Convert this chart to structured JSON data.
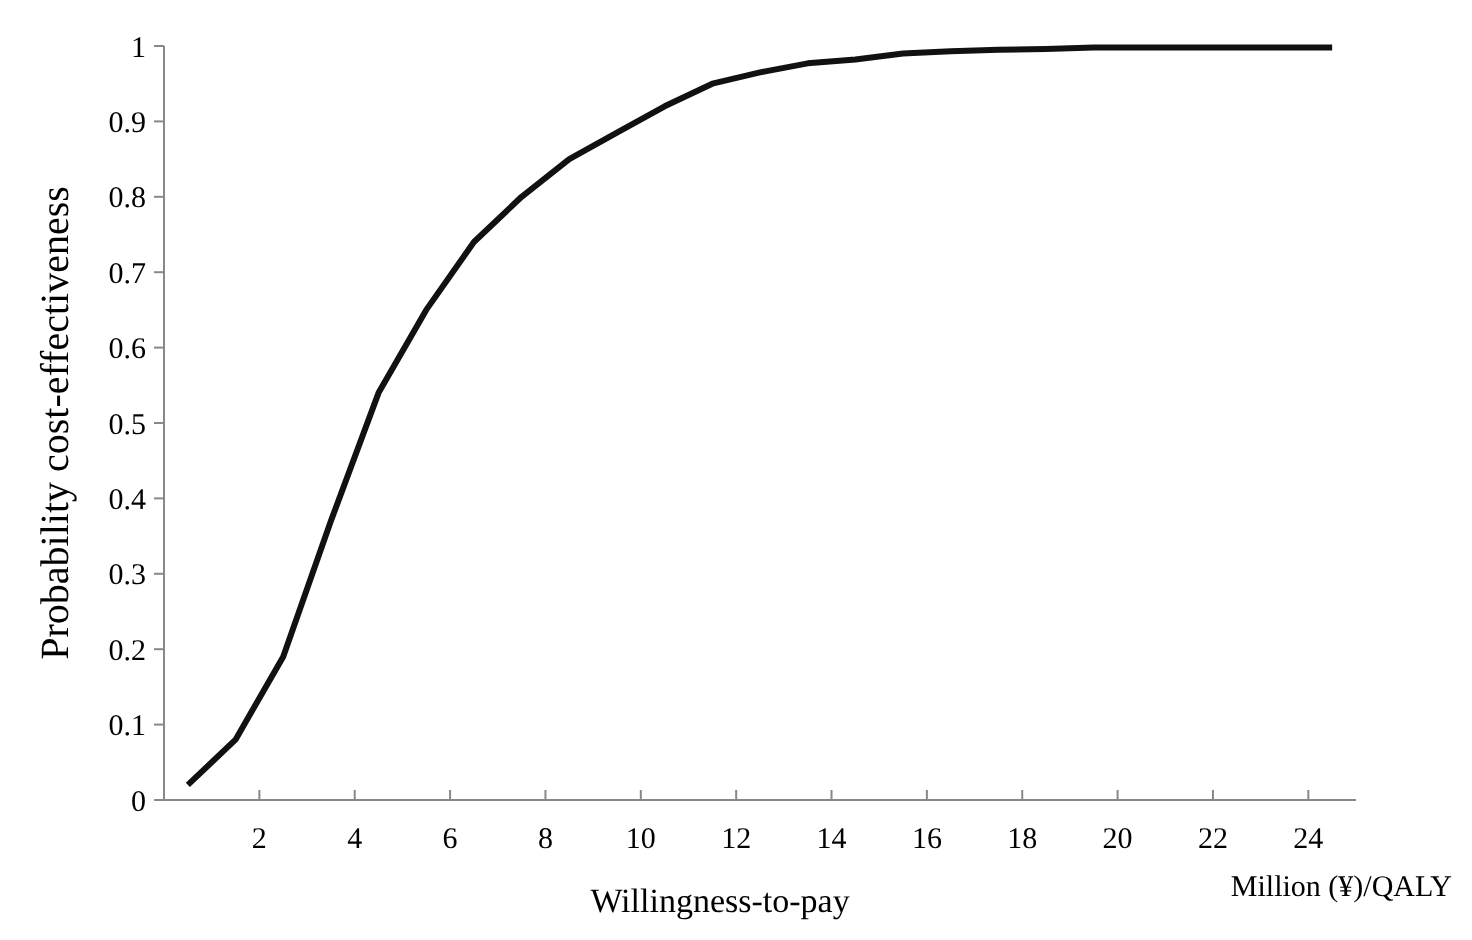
{
  "chart_data": {
    "type": "line",
    "xlabel": "Willingness-to-pay",
    "ylabel": "Probability  cost-effectiveness",
    "annotations": [
      "Million (¥)/QALY"
    ],
    "x": [
      0.5,
      1.5,
      2.5,
      3.5,
      4.5,
      5.5,
      6.5,
      7.5,
      8.5,
      9.5,
      10.5,
      11.5,
      12.5,
      13.5,
      14.5,
      15.5,
      16.5,
      17.5,
      18.5,
      19.5,
      20.5,
      21.5,
      22.5,
      23.5,
      24.5
    ],
    "series": [
      {
        "color": "#111111",
        "values": [
          0.02,
          0.08,
          0.19,
          0.37,
          0.54,
          0.65,
          0.74,
          0.8,
          0.85,
          0.885,
          0.92,
          0.95,
          0.965,
          0.977,
          0.982,
          0.99,
          0.993,
          0.995,
          0.996,
          0.998,
          0.998,
          0.998,
          0.998,
          0.998,
          0.998
        ]
      }
    ],
    "xlim": [
      0,
      25
    ],
    "xticks": [
      2,
      4,
      6,
      8,
      10,
      12,
      14,
      16,
      18,
      20,
      22,
      24
    ],
    "ylim": [
      0,
      1
    ],
    "yticks": [
      0,
      0.1,
      0.2,
      0.3,
      0.4,
      0.5,
      0.6,
      0.7,
      0.8,
      0.9,
      1
    ],
    "grid": false,
    "marker": "none",
    "line_style": "solid"
  }
}
